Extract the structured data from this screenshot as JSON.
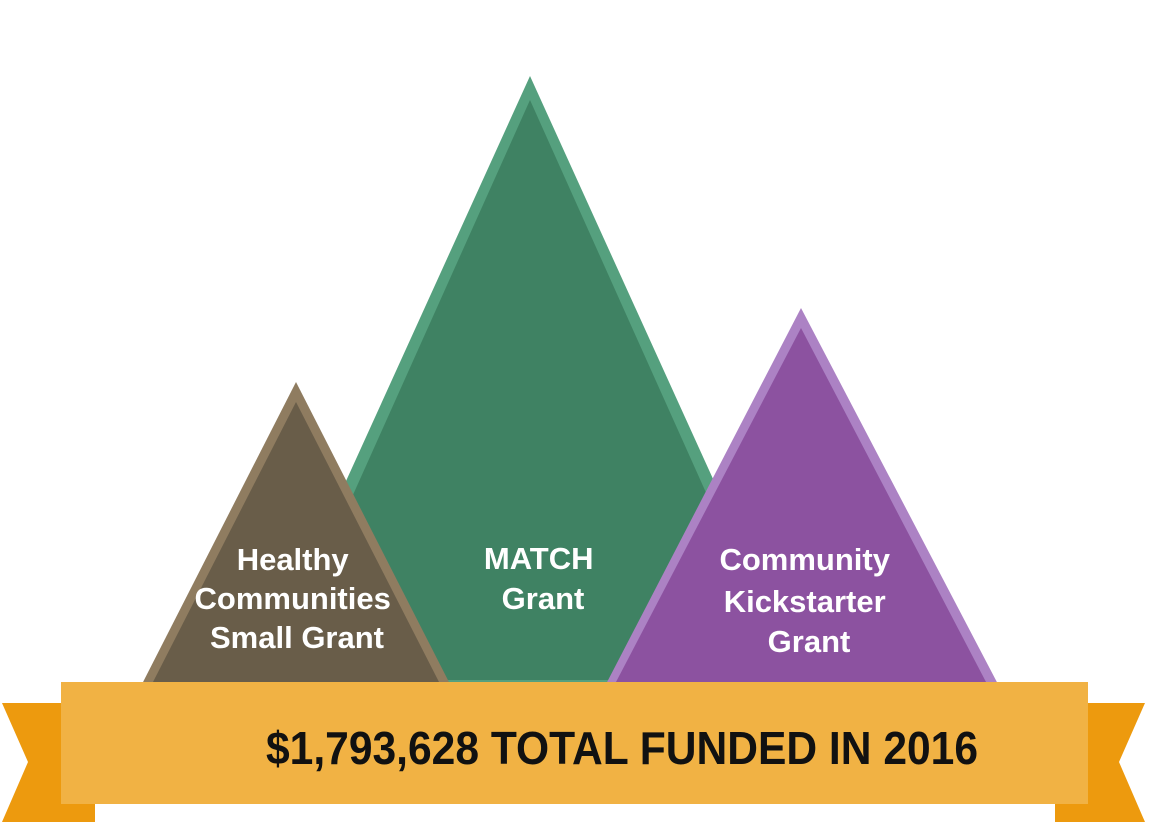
{
  "peaks": {
    "match": {
      "lines": [
        "MATCH",
        "Grant"
      ],
      "fill": "#3f8263",
      "border": "#55a07e"
    },
    "healthy": {
      "lines": [
        "Healthy",
        "Communities",
        "Small Grant"
      ],
      "fill": "#695d49",
      "border": "#8f7c60"
    },
    "kickstarter": {
      "lines": [
        "Community",
        "Kickstarter",
        "Grant"
      ],
      "fill": "#8c52a0",
      "border": "#ac82c4"
    }
  },
  "banner": {
    "text": "$1,793,628 TOTAL FUNDED IN 2016",
    "fill": "#f1b244",
    "ribbon_fill": "#ed9a0e"
  }
}
